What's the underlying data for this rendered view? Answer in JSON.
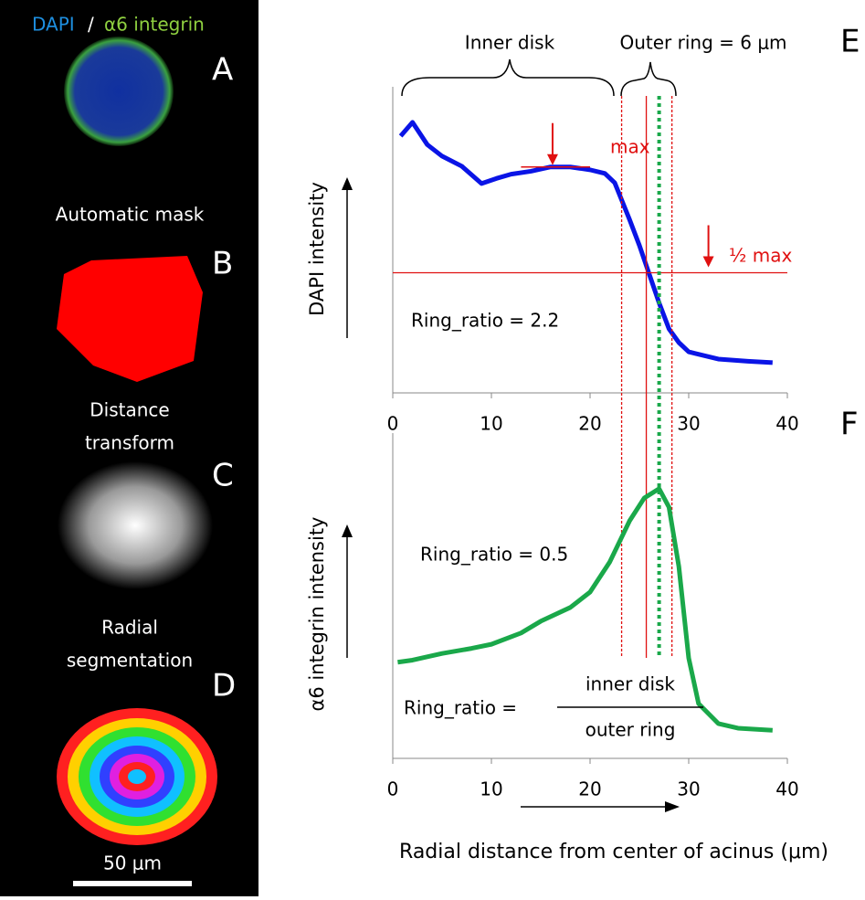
{
  "image_panel": {
    "title_dapi": "DAPI",
    "title_sep": "/",
    "title_integrin": "α6 integrin",
    "labels": [
      "A",
      "B",
      "C",
      "D"
    ],
    "captions": [
      "Automatic mask",
      "Distance",
      "transform",
      "Radial",
      "segmentation"
    ],
    "scale_bar": "50 μm"
  },
  "chart_data": [
    {
      "type": "line",
      "panel_label": "E",
      "ylabel": "DAPI intensity",
      "x": [
        0.8,
        2,
        3.5,
        5,
        7,
        9,
        10.5,
        12,
        14,
        16,
        18,
        20,
        21.5,
        22.5,
        24,
        25,
        26,
        27,
        28,
        29,
        30,
        33,
        36,
        38.5
      ],
      "series": [
        {
          "color": "#0a14e6",
          "values": [
            3.57,
            3.76,
            3.45,
            3.29,
            3.15,
            2.91,
            2.98,
            3.04,
            3.08,
            3.14,
            3.14,
            3.1,
            3.05,
            2.92,
            2.41,
            2.05,
            1.65,
            1.25,
            0.89,
            0.7,
            0.57,
            0.47,
            0.44,
            0.42
          ]
        }
      ],
      "xlim": [
        0,
        40
      ],
      "xticks": [
        0,
        10,
        20,
        30,
        40
      ],
      "ylim": [
        0,
        4
      ],
      "annotations": [
        "Inner disk",
        "Outer ring = 6 μm",
        "max",
        "½ max",
        "Ring_ratio = 2.2"
      ],
      "max_line": 3.14,
      "half_max_line": 1.67,
      "vlines": [
        {
          "x": 23.2,
          "color": "#e01010",
          "style": "dashed"
        },
        {
          "x": 25.7,
          "color": "#e01010",
          "style": "solid"
        },
        {
          "x": 28.3,
          "color": "#e01010",
          "style": "dashed"
        },
        {
          "x": 27,
          "color": "#1aa84a",
          "style": "dotted"
        }
      ]
    },
    {
      "type": "line",
      "panel_label": "F",
      "ylabel": "α6 integrin intensity",
      "xlabel": "Radial distance from center of acinus (μm)",
      "x": [
        0.5,
        2,
        5,
        8,
        10,
        13,
        15,
        18,
        20,
        22,
        24,
        25.5,
        27,
        28,
        29,
        30,
        31,
        33,
        35,
        38.5
      ],
      "series": [
        {
          "color": "#1aa84a",
          "values": [
            1.88,
            1.92,
            2.05,
            2.15,
            2.23,
            2.45,
            2.68,
            2.95,
            3.25,
            3.84,
            4.64,
            5.09,
            5.27,
            4.91,
            3.75,
            1.96,
            1.07,
            0.68,
            0.59,
            0.55
          ]
        }
      ],
      "xlim": [
        0,
        40
      ],
      "xticks": [
        0,
        10,
        20,
        30,
        40
      ],
      "ylim": [
        0,
        6
      ],
      "annotations": [
        "Ring_ratio = 0.5",
        "Ring_ratio =",
        "inner disk",
        "outer ring"
      ]
    }
  ]
}
